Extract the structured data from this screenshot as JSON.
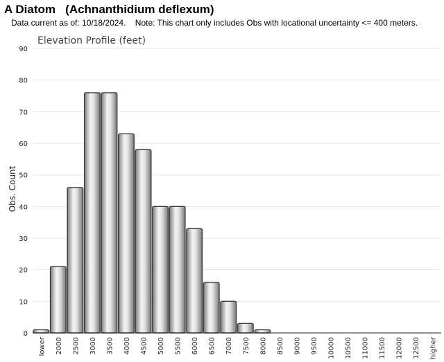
{
  "header": {
    "title": "A Diatom   (Achnanthidium deflexum)",
    "subtitle": "Data current as of: 10/18/2024.    Note: This chart only includes Obs with locational uncertainty <= 400 meters."
  },
  "chart_data": {
    "type": "bar",
    "title": "Elevation Profile (feet)",
    "xlabel": "",
    "ylabel": "Obs. Count",
    "categories": [
      "lower",
      "2000",
      "2500",
      "3000",
      "3500",
      "4000",
      "4500",
      "5000",
      "5500",
      "6000",
      "6500",
      "7000",
      "7500",
      "8000",
      "8500",
      "9000",
      "9500",
      "10000",
      "10500",
      "11000",
      "11500",
      "12000",
      "12500",
      "higher"
    ],
    "values": [
      1,
      21,
      46,
      76,
      76,
      63,
      58,
      40,
      40,
      33,
      16,
      10,
      3,
      1,
      0,
      0,
      0,
      0,
      0,
      0,
      0,
      0,
      0,
      0
    ],
    "ylim": [
      0,
      90
    ],
    "yticks": [
      "0",
      "10",
      "20",
      "30",
      "40",
      "50",
      "60",
      "70",
      "80",
      "90"
    ],
    "grid": true,
    "legend": "none",
    "colors": {
      "bar_fill_light": "#f4f4f4",
      "bar_fill_dark": "#8a8a8a",
      "bar_stroke": "#3a3a3a",
      "grid": "#e4e4e4"
    }
  }
}
